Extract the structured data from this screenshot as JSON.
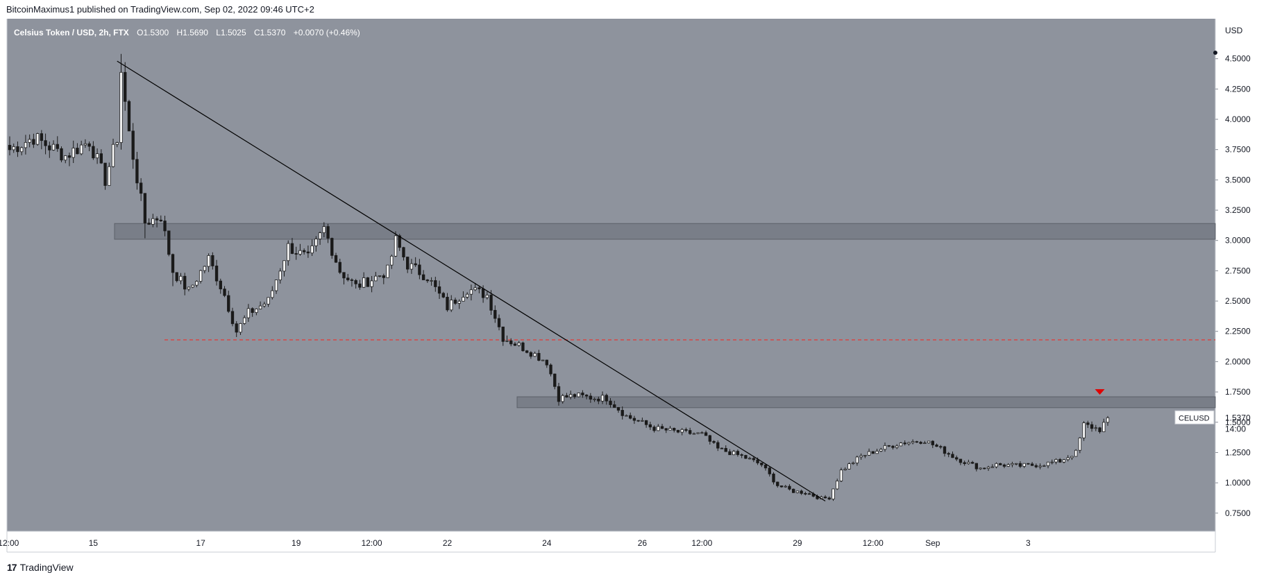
{
  "header": {
    "published_text": "BitcoinMaximus1 published on TradingView.com, Sep 02, 2022 09:46 UTC+2"
  },
  "footer": {
    "brand_text": "TradingView",
    "logo_glyph": "17"
  },
  "colors": {
    "plot_bg": "#8e939d",
    "up": "#ffffff",
    "down": "#1a1a1a",
    "wick": "#1a1a1a",
    "zone": "#6b707a",
    "support": "#e53935",
    "arrow": "#e00000",
    "trendline": "#000000"
  },
  "chart_data": {
    "type": "candlestick",
    "title": "Celsius Token / USD, 2h, FTX",
    "ohlc": {
      "o_label": "O",
      "o": "1.5300",
      "h_label": "H",
      "h": "1.5690",
      "l_label": "L",
      "l": "1.5025",
      "c_label": "C",
      "c": "1.5370",
      "chg": "+0.0070 (+0.46%)"
    },
    "y_axis": {
      "unit": "USD",
      "min": 0.6,
      "max": 4.83,
      "ticks": [
        "4.5000",
        "4.2500",
        "4.0000",
        "3.7500",
        "3.5000",
        "3.2500",
        "3.0000",
        "2.7500",
        "2.5000",
        "2.2500",
        "2.0000",
        "1.7500",
        "1.5000",
        "1.2500",
        "1.0000",
        "0.7500"
      ]
    },
    "x_axis": {
      "ticks": [
        "12:00",
        "15",
        "17",
        "19",
        "12:00",
        "22",
        "24",
        "26",
        "12:00",
        "29",
        "12:00",
        "Sep",
        "3"
      ]
    },
    "price_tag": {
      "symbol": "CELUSD",
      "price": "1.5370",
      "countdown": "14:00",
      "value": 1.537
    },
    "resistance_zones": [
      {
        "from": 3.01,
        "to": 3.14
      },
      {
        "from": 1.62,
        "to": 1.71
      }
    ],
    "support_line": 2.18,
    "trendline": {
      "from_price": 4.48,
      "to_price": 0.85
    },
    "bearish_arrow_price": 1.75,
    "anchors": [
      [
        0,
        3.75
      ],
      [
        6,
        3.85
      ],
      [
        14,
        3.7
      ],
      [
        20,
        3.82
      ],
      [
        24,
        3.5
      ],
      [
        27,
        3.85
      ],
      [
        28,
        4.4
      ],
      [
        30,
        3.88
      ],
      [
        34,
        3.15
      ],
      [
        38,
        3.2
      ],
      [
        41,
        2.75
      ],
      [
        45,
        2.58
      ],
      [
        50,
        2.85
      ],
      [
        54,
        2.55
      ],
      [
        57,
        2.25
      ],
      [
        60,
        2.4
      ],
      [
        65,
        2.5
      ],
      [
        70,
        2.95
      ],
      [
        75,
        2.85
      ],
      [
        79,
        3.1
      ],
      [
        83,
        2.75
      ],
      [
        87,
        2.62
      ],
      [
        91,
        2.68
      ],
      [
        95,
        2.75
      ],
      [
        97,
        3.0
      ],
      [
        100,
        2.8
      ],
      [
        105,
        2.7
      ],
      [
        110,
        2.45
      ],
      [
        115,
        2.6
      ],
      [
        120,
        2.55
      ],
      [
        124,
        2.2
      ],
      [
        130,
        2.1
      ],
      [
        135,
        2.0
      ],
      [
        138,
        1.7
      ],
      [
        142,
        1.72
      ],
      [
        147,
        1.7
      ],
      [
        150,
        1.7
      ],
      [
        155,
        1.55
      ],
      [
        162,
        1.45
      ],
      [
        168,
        1.42
      ],
      [
        174,
        1.4
      ],
      [
        178,
        1.28
      ],
      [
        184,
        1.22
      ],
      [
        189,
        1.15
      ],
      [
        193,
        0.98
      ],
      [
        197,
        0.93
      ],
      [
        200,
        0.92
      ],
      [
        204,
        0.87
      ],
      [
        206,
        0.88
      ],
      [
        209,
        1.1
      ],
      [
        214,
        1.22
      ],
      [
        219,
        1.28
      ],
      [
        224,
        1.33
      ],
      [
        230,
        1.35
      ],
      [
        234,
        1.28
      ],
      [
        238,
        1.2
      ],
      [
        244,
        1.12
      ],
      [
        248,
        1.15
      ],
      [
        254,
        1.14
      ],
      [
        259,
        1.15
      ],
      [
        264,
        1.18
      ],
      [
        268,
        1.25
      ],
      [
        270,
        1.48
      ],
      [
        274,
        1.44
      ],
      [
        276,
        1.537
      ]
    ],
    "bar_count": 277
  }
}
